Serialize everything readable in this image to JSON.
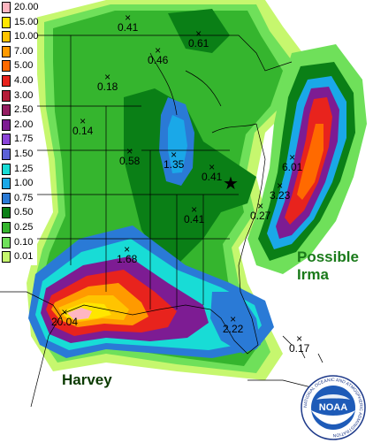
{
  "legend": [
    {
      "label": "20.00",
      "color": "#ffb6c1"
    },
    {
      "label": "15.00",
      "color": "#ffe600"
    },
    {
      "label": "10.00",
      "color": "#ffc400"
    },
    {
      "label": "7.00",
      "color": "#ff9a00"
    },
    {
      "label": "5.00",
      "color": "#ff6a00"
    },
    {
      "label": "4.00",
      "color": "#e8231d"
    },
    {
      "label": "3.00",
      "color": "#b51c38"
    },
    {
      "label": "2.50",
      "color": "#951e62"
    },
    {
      "label": "2.00",
      "color": "#7d1c93"
    },
    {
      "label": "1.75",
      "color": "#8b45d9"
    },
    {
      "label": "1.50",
      "color": "#5b61d8"
    },
    {
      "label": "1.25",
      "color": "#18dcd6"
    },
    {
      "label": "1.00",
      "color": "#1aa8e8"
    },
    {
      "label": "0.75",
      "color": "#2a7ad6"
    },
    {
      "label": "0.50",
      "color": "#0a7f16"
    },
    {
      "label": "0.25",
      "color": "#35b52e"
    },
    {
      "label": "0.10",
      "color": "#6fe05a"
    },
    {
      "label": "0.01",
      "color": "#c6f76e"
    }
  ],
  "stations": [
    {
      "value": "0.41"
    },
    {
      "value": "0.61"
    },
    {
      "value": "0.46"
    },
    {
      "value": "0.18"
    },
    {
      "value": "0.14"
    },
    {
      "value": "0.58"
    },
    {
      "value": "1.35"
    },
    {
      "value": "0.41"
    },
    {
      "value": "6.01"
    },
    {
      "value": "3.23"
    },
    {
      "value": "0.27"
    },
    {
      "value": "0.41"
    },
    {
      "value": "1.68"
    },
    {
      "value": "20.04"
    },
    {
      "value": "2.22"
    },
    {
      "value": "0.17"
    }
  ],
  "labels": {
    "harvey": "Harvey",
    "irma_line1": "Possible",
    "irma_line2": "Irma"
  },
  "logo": {
    "text": "NOAA",
    "ring_text": "NATIONAL OCEANIC AND ATMOSPHERIC ADMINISTRATION"
  },
  "colors": {
    "land_green": "#35b52e",
    "water_white": "#ffffff",
    "irma_text": "#1a7a1a",
    "harvey_text": "#0b3a00"
  }
}
